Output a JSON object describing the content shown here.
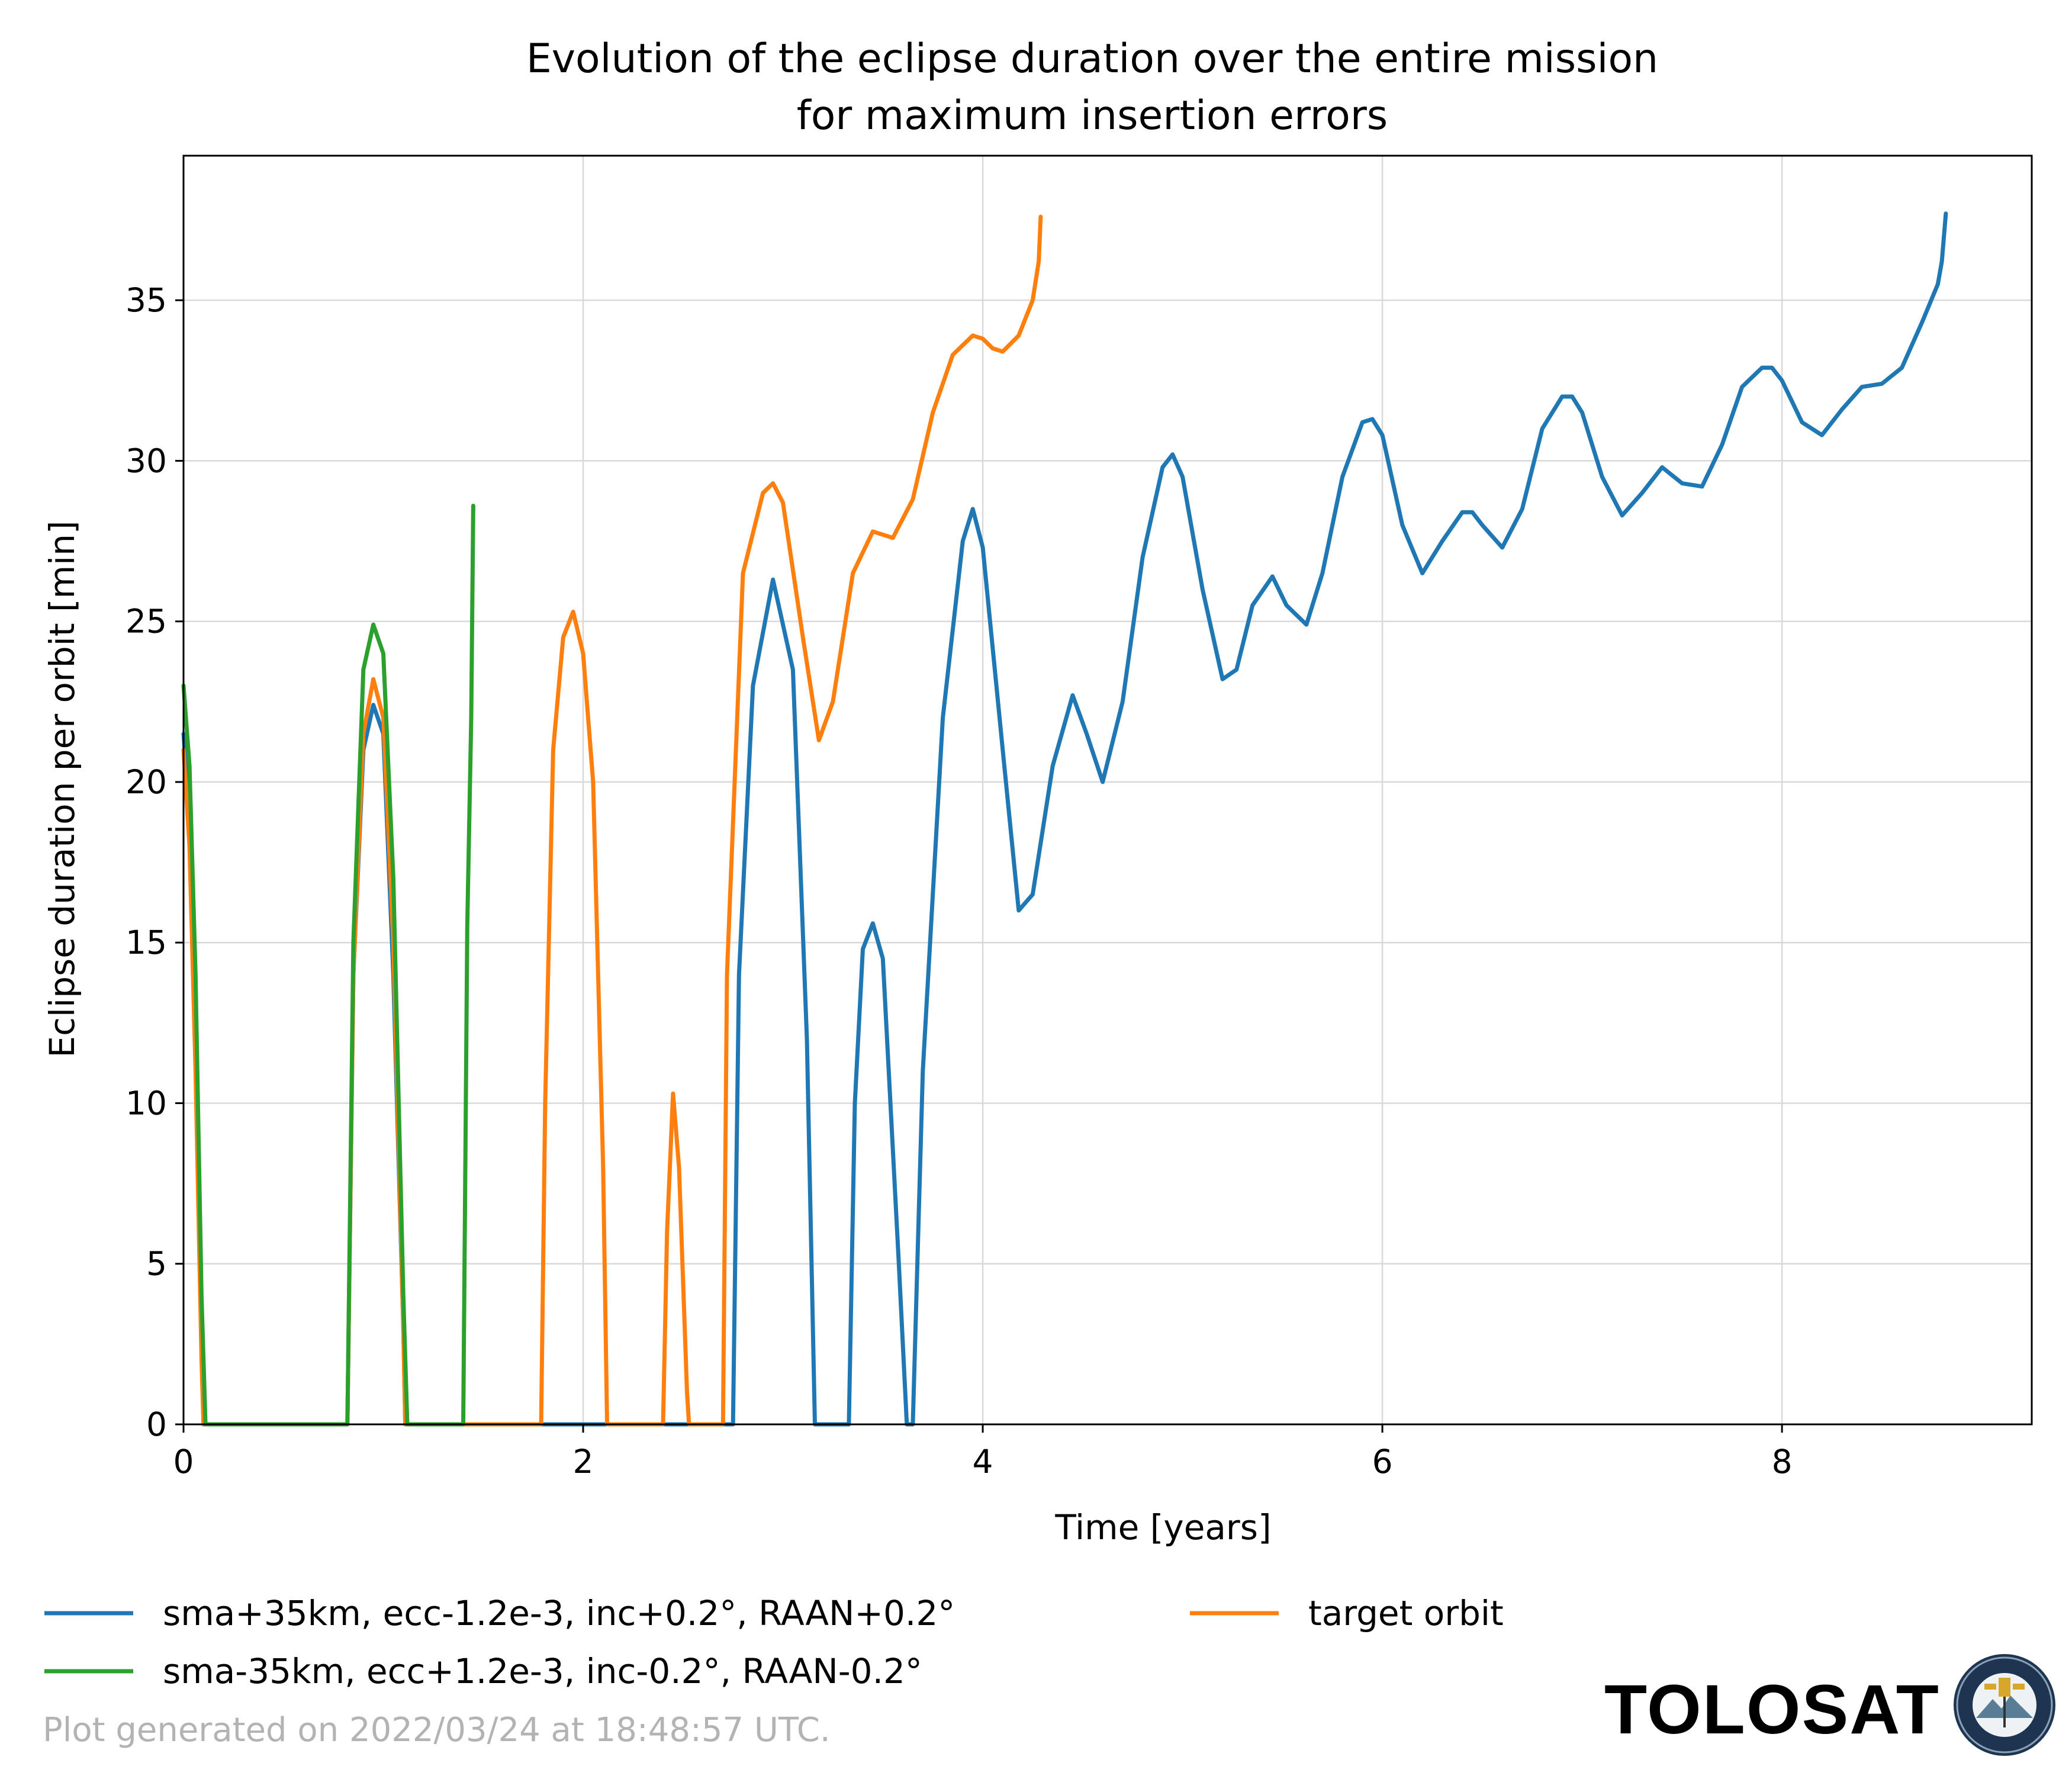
{
  "chart_data": {
    "type": "line",
    "title_line1": "Evolution of the eclipse duration over the entire mission",
    "title_line2": "for maximum insertion errors",
    "xlabel": "Time [years]",
    "ylabel": "Eclipse duration per orbit [min]",
    "xlim": [
      0,
      9.25
    ],
    "ylim": [
      0,
      39.5
    ],
    "xticks": [
      0,
      2,
      4,
      6,
      8
    ],
    "yticks": [
      0,
      5,
      10,
      15,
      20,
      25,
      30,
      35
    ],
    "grid": true,
    "legend_position": "bottom, below axes",
    "series": [
      {
        "name": "sma+35km, ecc-1.2e-3, inc+0.2°, RAAN+0.2°",
        "color": "#1f77b4",
        "x": [
          0.0,
          0.03,
          0.06,
          0.09,
          0.1,
          0.82,
          0.85,
          0.9,
          0.95,
          1.0,
          1.05,
          1.1,
          1.11,
          2.12,
          2.14,
          2.2,
          2.5,
          2.6,
          2.75,
          2.78,
          2.85,
          2.95,
          3.05,
          3.12,
          3.16,
          3.33,
          3.36,
          3.4,
          3.45,
          3.5,
          3.58,
          3.62,
          3.65,
          3.7,
          3.8,
          3.9,
          3.95,
          4.0,
          4.1,
          4.18,
          4.25,
          4.35,
          4.45,
          4.52,
          4.6,
          4.7,
          4.8,
          4.9,
          4.95,
          5.0,
          5.1,
          5.2,
          5.27,
          5.35,
          5.45,
          5.52,
          5.62,
          5.7,
          5.8,
          5.9,
          5.95,
          6.0,
          6.1,
          6.2,
          6.3,
          6.4,
          6.45,
          6.5,
          6.6,
          6.7,
          6.8,
          6.9,
          6.95,
          7.0,
          7.1,
          7.2,
          7.3,
          7.4,
          7.5,
          7.6,
          7.7,
          7.8,
          7.9,
          7.95,
          8.0,
          8.1,
          8.2,
          8.3,
          8.4,
          8.5,
          8.6,
          8.7,
          8.78,
          8.8,
          8.82
        ],
        "y": [
          21.5,
          19.0,
          12.0,
          3.0,
          0.0,
          0.0,
          14.0,
          21.0,
          22.4,
          21.5,
          14.0,
          3.0,
          0.0,
          0.0,
          0.0,
          0.0,
          0.0,
          0.0,
          0.0,
          14.0,
          23.0,
          26.3,
          23.5,
          12.0,
          0.0,
          0.0,
          10.0,
          14.8,
          15.6,
          14.5,
          5.0,
          0.0,
          0.0,
          11.0,
          22.0,
          27.5,
          28.5,
          27.3,
          21.0,
          16.0,
          16.5,
          20.5,
          22.7,
          21.5,
          20.0,
          22.5,
          27.0,
          29.8,
          30.2,
          29.5,
          26.0,
          23.2,
          23.5,
          25.5,
          26.4,
          25.5,
          24.9,
          26.5,
          29.5,
          31.2,
          31.3,
          30.8,
          28.0,
          26.5,
          27.5,
          28.4,
          28.4,
          28.0,
          27.3,
          28.5,
          31.0,
          32.0,
          32.0,
          31.5,
          29.5,
          28.3,
          29.0,
          29.8,
          29.3,
          29.2,
          30.5,
          32.3,
          32.9,
          32.9,
          32.5,
          31.2,
          30.8,
          31.6,
          32.3,
          32.4,
          32.9,
          34.3,
          35.5,
          36.2,
          37.7
        ]
      },
      {
        "name": "target orbit",
        "color": "#ff7f0e",
        "x": [
          0.0,
          0.03,
          0.06,
          0.09,
          0.1,
          0.82,
          0.85,
          0.9,
          0.95,
          1.0,
          1.05,
          1.1,
          1.11,
          1.79,
          1.81,
          1.85,
          1.9,
          1.95,
          2.0,
          2.05,
          2.1,
          2.12,
          2.4,
          2.42,
          2.45,
          2.48,
          2.52,
          2.53,
          2.7,
          2.72,
          2.8,
          2.9,
          2.95,
          3.0,
          3.1,
          3.18,
          3.25,
          3.35,
          3.45,
          3.55,
          3.65,
          3.75,
          3.85,
          3.95,
          4.0,
          4.05,
          4.1,
          4.18,
          4.25,
          4.28,
          4.29
        ],
        "y": [
          21.0,
          18.0,
          11.0,
          2.0,
          0.0,
          0.0,
          14.0,
          21.5,
          23.2,
          22.0,
          15.0,
          3.0,
          0.0,
          0.0,
          10.0,
          21.0,
          24.5,
          25.3,
          24.0,
          20.0,
          8.0,
          0.0,
          0.0,
          6.0,
          10.3,
          8.0,
          1.0,
          0.0,
          0.0,
          14.0,
          26.5,
          29.0,
          29.3,
          28.7,
          24.5,
          21.3,
          22.5,
          26.5,
          27.8,
          27.6,
          28.8,
          31.5,
          33.3,
          33.9,
          33.8,
          33.5,
          33.4,
          33.9,
          35.0,
          36.2,
          37.6
        ]
      },
      {
        "name": "sma-35km, ecc+1.2e-3, inc-0.2°, RAAN-0.2°",
        "color": "#2ca02c",
        "x": [
          0.0,
          0.03,
          0.06,
          0.09,
          0.11,
          0.82,
          0.85,
          0.9,
          0.95,
          1.0,
          1.05,
          1.1,
          1.12,
          1.4,
          1.42,
          1.44,
          1.45
        ],
        "y": [
          23.0,
          20.5,
          14.0,
          4.0,
          0.0,
          0.0,
          15.0,
          23.5,
          24.9,
          24.0,
          17.0,
          4.0,
          0.0,
          0.0,
          15.5,
          22.0,
          28.6
        ]
      }
    ],
    "legend_entries": [
      "sma+35km, ecc-1.2e-3, inc+0.2°, RAAN+0.2°",
      "target orbit",
      "sma-35km, ecc+1.2e-3, inc-0.2°, RAAN-0.2°"
    ]
  },
  "footer": {
    "generated_text": "Plot generated on 2022/03/24 at 18:48:57 UTC."
  },
  "brand": {
    "name": "TOLOSAT",
    "logo_icon": "tolosat-logo-icon"
  }
}
